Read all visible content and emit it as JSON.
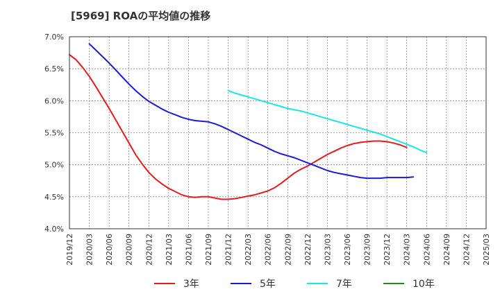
{
  "chart_data": {
    "type": "line",
    "title": "[5969]  ROAの平均値の推移",
    "xlabel": "",
    "ylabel": "",
    "ylim": [
      4.0,
      7.0
    ],
    "y_ticks": [
      "4.0%",
      "4.5%",
      "5.0%",
      "5.5%",
      "6.0%",
      "6.5%",
      "7.0%"
    ],
    "y_tick_values": [
      4.0,
      4.5,
      5.0,
      5.5,
      6.0,
      6.5,
      7.0
    ],
    "x_ticks": [
      "2019/12",
      "2020/03",
      "2020/06",
      "2020/09",
      "2020/12",
      "2021/03",
      "2021/06",
      "2021/09",
      "2021/12",
      "2022/03",
      "2022/06",
      "2022/09",
      "2022/12",
      "2023/03",
      "2023/06",
      "2023/09",
      "2023/12",
      "2024/03",
      "2024/06",
      "2024/09",
      "2024/12",
      "2025/03"
    ],
    "grid": true,
    "legend_position": "bottom",
    "series": [
      {
        "name": "3年",
        "color": "#e8191a",
        "start_index": 0,
        "values": [
          6.72,
          6.64,
          6.52,
          6.38,
          6.22,
          6.05,
          5.88,
          5.7,
          5.52,
          5.34,
          5.16,
          5.01,
          4.88,
          4.78,
          4.7,
          4.63,
          4.58,
          4.53,
          4.5,
          4.49,
          4.5,
          4.5,
          4.48,
          4.46,
          4.46,
          4.47,
          4.49,
          4.51,
          4.53,
          4.56,
          4.59,
          4.64,
          4.71,
          4.79,
          4.87,
          4.93,
          4.98,
          5.04,
          5.1,
          5.16,
          5.21,
          5.26,
          5.3,
          5.33,
          5.35,
          5.36,
          5.37,
          5.37,
          5.36,
          5.34,
          5.31,
          5.27
        ]
      },
      {
        "name": "5年",
        "color": "#1a1adb",
        "start_index": 3,
        "values": [
          6.89,
          6.79,
          6.69,
          6.59,
          6.48,
          6.37,
          6.26,
          6.16,
          6.07,
          5.99,
          5.93,
          5.87,
          5.82,
          5.78,
          5.74,
          5.71,
          5.69,
          5.68,
          5.67,
          5.64,
          5.6,
          5.55,
          5.5,
          5.45,
          5.4,
          5.35,
          5.31,
          5.26,
          5.21,
          5.17,
          5.14,
          5.11,
          5.07,
          5.03,
          4.99,
          4.95,
          4.91,
          4.88,
          4.86,
          4.84,
          4.82,
          4.8,
          4.79,
          4.79,
          4.79,
          4.8,
          4.8,
          4.8,
          4.8,
          4.81
        ]
      },
      {
        "name": "7年",
        "color": "#1ae5e5",
        "start_index": 24,
        "values": [
          6.16,
          6.12,
          6.09,
          6.06,
          6.03,
          6.0,
          5.97,
          5.94,
          5.91,
          5.88,
          5.86,
          5.84,
          5.81,
          5.78,
          5.75,
          5.72,
          5.69,
          5.66,
          5.63,
          5.6,
          5.57,
          5.54,
          5.51,
          5.48,
          5.44,
          5.4,
          5.36,
          5.32,
          5.28,
          5.23,
          5.19
        ]
      },
      {
        "name": "10年",
        "color": "#1a8c1a",
        "start_index": 0,
        "values": []
      }
    ]
  }
}
